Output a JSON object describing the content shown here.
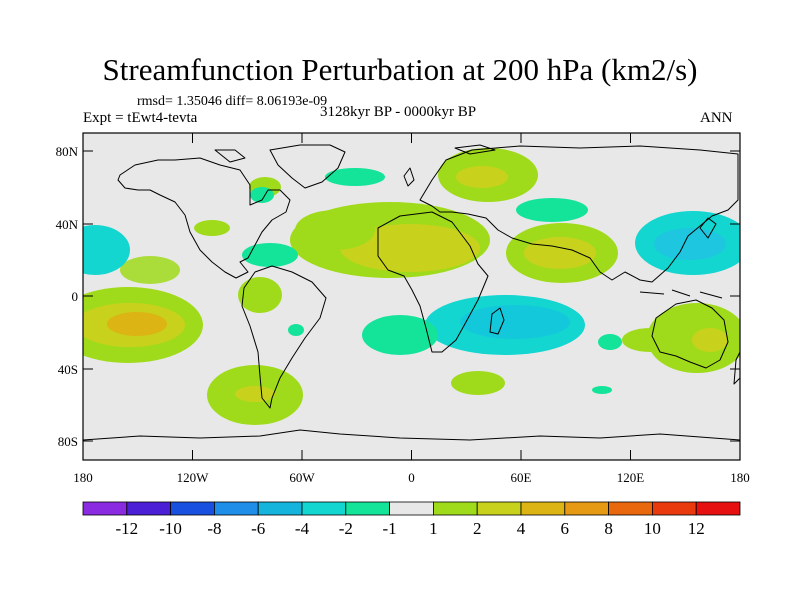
{
  "title": "Streamfunction Perturbation at 200 hPa (km2/s)",
  "stats": "rmsd= 1.35046 diff= 8.06193e-09",
  "experiment": "Expt = tEwt4-tevta",
  "period": "3128kyr BP - 0000kyr BP",
  "season": "ANN",
  "lat_ticks": [
    "80N",
    "40N",
    "0",
    "40S",
    "80S"
  ],
  "lon_ticks": [
    "180",
    "120W",
    "60W",
    "0",
    "60E",
    "120E",
    "180"
  ],
  "colorbar": {
    "labels": [
      "-12",
      "-10",
      "-8",
      "-6",
      "-4",
      "-2",
      "-1",
      "1",
      "2",
      "4",
      "6",
      "8",
      "10",
      "12"
    ],
    "colors": [
      "#8a2be2",
      "#4b1fd6",
      "#1a50e0",
      "#1e8ee8",
      "#14b4dc",
      "#12d6cf",
      "#14e39a",
      "#e8e8e8",
      "#9fdb1a",
      "#c8d21c",
      "#dcb414",
      "#e69a14",
      "#e9680e",
      "#e83a0c",
      "#e61010"
    ]
  },
  "background_color": "#e8e8e8"
}
